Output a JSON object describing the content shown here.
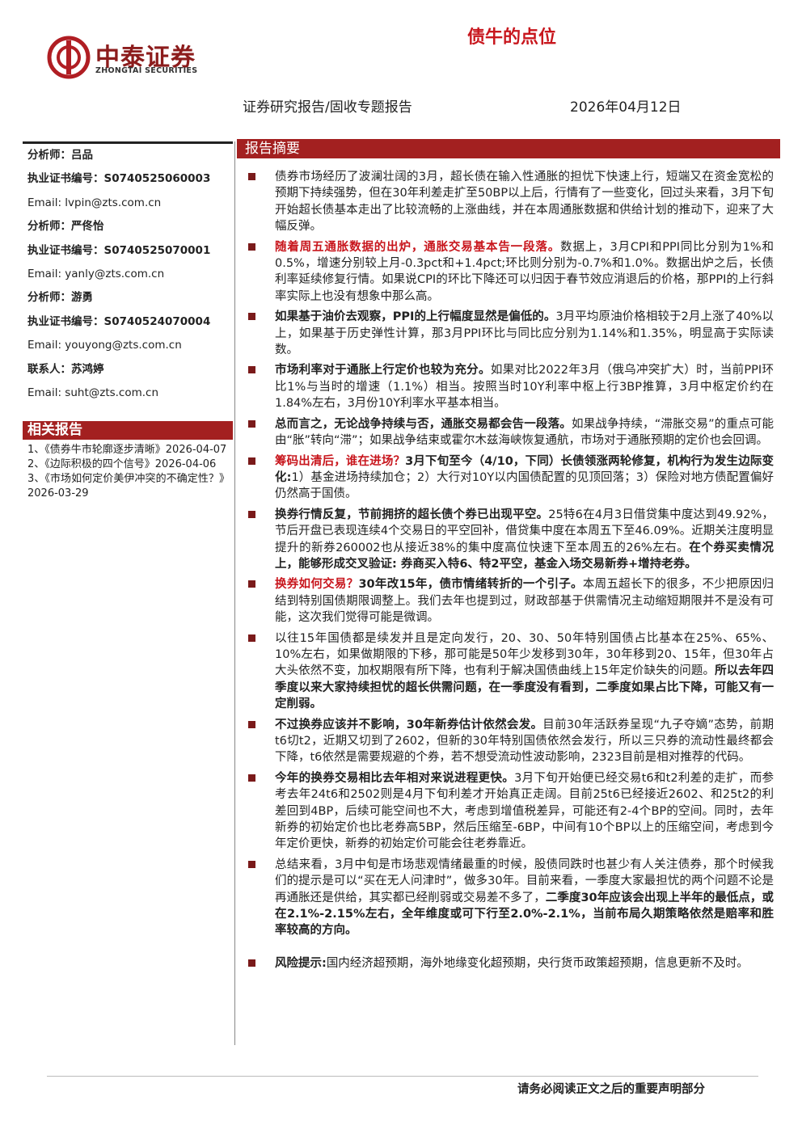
{
  "header": {
    "logo_name": "中泰证券",
    "logo_en": "ZHONGTAI SECURITIES",
    "title": "债牛的点位",
    "report_type": "证券研究报告/固收专题报告",
    "date": "2026年04月12日"
  },
  "sidebar": {
    "contacts": [
      {
        "text": "分析师：吕品",
        "style": "bold"
      },
      {
        "text": "执业证书编号：S0740525060003",
        "style": "bold"
      },
      {
        "text": "Email: lvpin@zts.com.cn"
      },
      {
        "text": "分析师：严佟怡",
        "style": "bold"
      },
      {
        "text": "执业证书编号：S0740525070001",
        "style": "bold"
      },
      {
        "text": "Email: yanly@zts.com.cn"
      },
      {
        "text": "分析师：游勇",
        "style": "bold"
      },
      {
        "text": "执业证书编号：S0740524070004",
        "style": "bold"
      },
      {
        "text": "Email: youyong@zts.com.cn"
      },
      {
        "text": "联系人：苏鸿婷",
        "style": "bold"
      },
      {
        "text": "Email: suht@zts.com.cn"
      }
    ],
    "related": {
      "heading": "相关报告",
      "items": [
        {
          "title": "1、《债券牛市轮廓逐步清晰》",
          "date": "2026-04-07"
        },
        {
          "title": "2、《边际积极的四个信号》",
          "date": "2026-04-06"
        },
        {
          "title": "3、《市场如何定价美伊冲突的不确定性？》",
          "date": "2026-03-29"
        }
      ]
    }
  },
  "summary": {
    "heading": "报告摘要",
    "bullets": [
      [
        {
          "text": "债券市场经历了波澜壮阔的3月，超长债在输入性通胀的担忧下快速上行，短端又在资金宽松的预期下持续强势，但在30年利差走扩至50BP以上后，行情有了一些变化，回过头来看，3月下旬开始超长债基本走出了比较流畅的上涨曲线，并在本周通胀数据和供给计划的推动下，迎来了大幅反弹。"
        }
      ],
      [
        {
          "text": "随着周五通胀数据的出炉，通胀交易基本告一段落。",
          "style": "red-bold"
        },
        {
          "text": "数据上，3月CPI和PPI同比分别为1%和0.5%，增速分别较上月-0.3pct和+1.4pct;环比则分别为-0.7%和1.0%。数据出炉之后，长债利率延续修复行情。如果说CPI的环比下降还可以归因于春节效应消退后的价格，那PPI的上行斜率实际上也没有想象中那么高。"
        }
      ],
      [
        {
          "text": "如果基于油价去观察，PPI的上行幅度显然是偏低的。",
          "style": "bold"
        },
        {
          "text": "3月平均原油价格相较于2月上涨了40%以上，如果基于历史弹性计算，那3月PPI环比与同比应分别为1.14%和1.35%，明显高于实际读数。"
        }
      ],
      [
        {
          "text": "市场利率对于通胀上行定价也较为充分。",
          "style": "bold"
        },
        {
          "text": "如果对比2022年3月（俄乌冲突扩大）时，当前PPI环比1%与当时的增速（1.1%）相当。按照当时10Y利率中枢上行3BP推算，3月中枢定价约在1.84%左右，3月份10Y利率水平基本相当。"
        }
      ],
      [
        {
          "text": "总而言之，无论战争持续与否，通胀交易都会告一段落。",
          "style": "bold"
        },
        {
          "text": "如果战争持续，“滞胀交易”的重点可能由“胀”转向“滞”；如果战争结束或霍尔木兹海峡恢复通航，市场对于通胀预期的定价也会回调。"
        }
      ],
      [
        {
          "text": "筹码出清后，谁在进场？",
          "style": "red-bold"
        },
        {
          "text": "3月下旬至今（4/10，下同）长债领涨两轮修复，机构行为发生边际变化:",
          "style": "bold"
        },
        {
          "text": "1）基金进场持续加仓；2）大行对10Y以内国债配置的见顶回落；3）保险对地方债配置偏好仍然高于国债。"
        }
      ],
      [
        {
          "text": "换券行情反复，节前拥挤的超长债个券已出现平空。",
          "style": "bold"
        },
        {
          "text": "25特6在4月3日借贷集中度达到49.92%，节后开盘已表现连续4个交易日的平空回补，借贷集中度在本周五下至46.09%。近期关注度明显提升的新券260002也从接近38%的集中度高位快速下至本周五的26%左右。"
        },
        {
          "text": "在个券买卖情况上，能够形成交叉验证: 券商买入特6、特2平空，基金入场交易新券+增持老券。",
          "style": "bold"
        }
      ],
      [
        {
          "text": "换券如何交易？",
          "style": "red-bold"
        },
        {
          "text": "30年改15年，债市情绪转折的一个引子。",
          "style": "bold"
        },
        {
          "text": "本周五超长下的很多，不少把原因归结到特别国债期限调整上。我们去年也提到过，财政部基于供需情况主动缩短期限并不是没有可能，这次我们觉得可能是微调。"
        }
      ],
      [
        {
          "text": "以往15年国债都是续发并且是定向发行，20、30、50年特别国债占比基本在25%、65%、10%左右，如果做期限的下移，那可能是50年少发移到30年，30年移到20、15年，但30年占大头依然不变，加权期限有所下降，也有利于解决国债曲线上15年定价缺失的问题。"
        },
        {
          "text": "所以去年四季度以来大家持续担忧的超长供需问题，在一季度没有看到，二季度如果占比下降，可能又有一定削弱。",
          "style": "bold"
        }
      ],
      [
        {
          "text": "不过换券应该并不影响，30年新券估计依然会发。",
          "style": "bold"
        },
        {
          "text": "目前30年活跃券呈现“九子夺嫡”态势，前期t6切t2，近期又切到了2602，但新的30年特别国债依然会发行，所以三只券的流动性最终都会下降，t6依然是需要规避的个券，若不想受流动性波动影响，2323目前是相对推荐的代码。"
        }
      ],
      [
        {
          "text": "今年的换券交易相比去年相对来说进程更快。",
          "style": "bold"
        },
        {
          "text": "3月下旬开始便已经交易t6和t2利差的走扩，而参考去年24t6和2502则是4月下旬利差才开始真正走阔。目前25t6已经接近2602、和25t2的利差回到4BP，后续可能空间也不大，考虑到增值税差异，可能还有2-4个BP的空间。同时，去年新券的初始定价也比老券高5BP，然后压缩至-6BP，中间有10个BP以上的压缩空间，考虑到今年定价更快，新券的初始定价可能会往老券靠近。"
        }
      ],
      [
        {
          "text": "总结来看，3月中旬是市场悲观情绪最重的时候，股债同跌时也甚少有人关注债券，那个时候我们的提示是可以“买在无人问津时”，做多30年。目前来看，一季度大家最担忧的两个问题不论是再通胀还是供给，其实都已经削弱或交易差不多了，"
        },
        {
          "text": "二季度30年应该会出现上半年的最低点，或在2.1%-2.15%左右，全年维度或可下行至2.0%-2.1%，当前布局久期策略依然是赔率和胜率较高的方向。",
          "style": "bold"
        }
      ]
    ],
    "risk": [
      {
        "text": "风险提示:",
        "style": "bold"
      },
      {
        "text": "国内经济超预期，海外地缘变化超预期，央行货币政策超预期，信息更新不及时。"
      }
    ]
  },
  "footer": "请务必阅读正文之后的重要声明部分"
}
